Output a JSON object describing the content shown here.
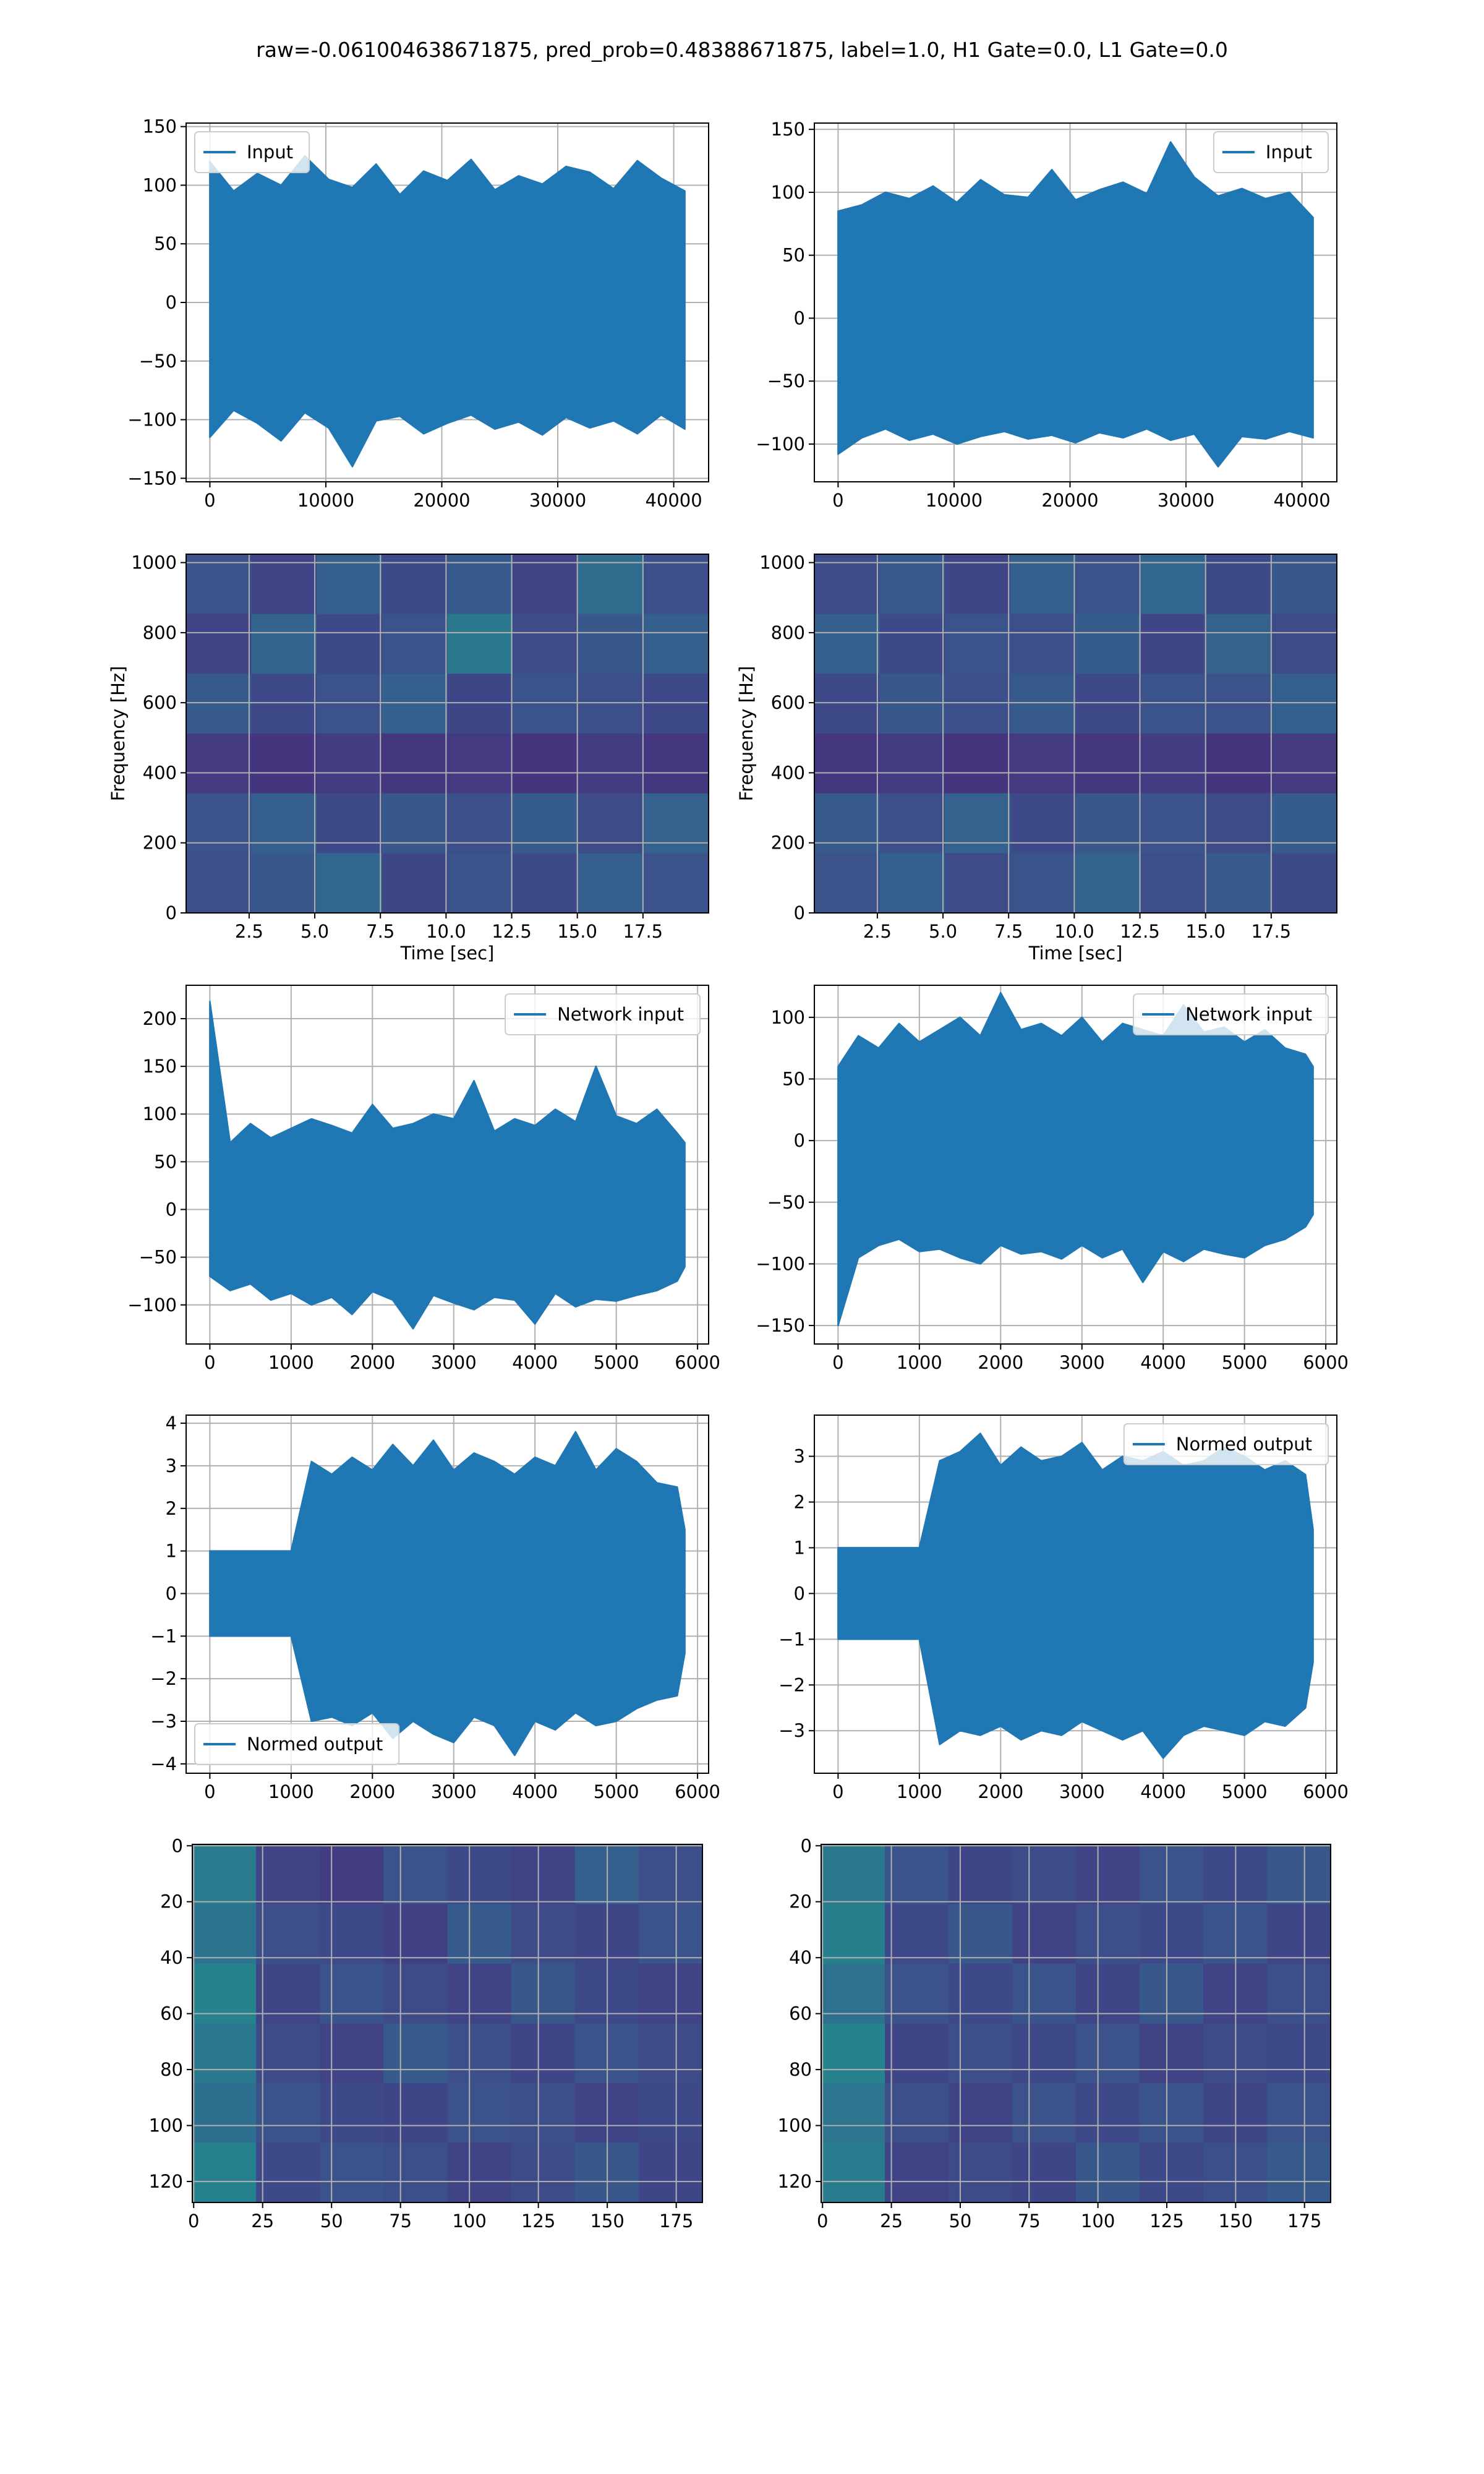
{
  "title": "raw=-0.061004638671875, pred_prob=0.48388671875, label=1.0, H1 Gate=0.0, L1 Gate=0.0",
  "chart_data": [
    {
      "type": "line",
      "x": [
        0,
        2048,
        4096,
        6144,
        8192,
        10240,
        12288,
        14336,
        16384,
        18432,
        20480,
        22528,
        24576,
        26624,
        28672,
        30720,
        32768,
        34816,
        36864,
        38912,
        40960
      ],
      "series": [
        {
          "name": "Input",
          "color": "#1f77b4",
          "max": [
            120,
            95,
            110,
            100,
            125,
            105,
            98,
            118,
            92,
            112,
            104,
            122,
            96,
            108,
            101,
            116,
            111,
            97,
            121,
            106,
            95
          ],
          "min": [
            -115,
            -92,
            -103,
            -118,
            -94,
            -107,
            -140,
            -101,
            -97,
            -112,
            -103,
            -96,
            -108,
            -102,
            -113,
            -98,
            -107,
            -101,
            -112,
            -96,
            -108
          ]
        }
      ],
      "xlim": [
        -2048,
        43008
      ],
      "ylim": [
        -153,
        153
      ],
      "xticks": [
        0,
        10000,
        20000,
        30000,
        40000
      ],
      "yticks": [
        {
          "value": -150,
          "label": "−150"
        },
        {
          "value": -100,
          "label": "−100"
        },
        {
          "value": -50,
          "label": "−50"
        },
        0,
        50,
        100,
        150
      ],
      "grid": true,
      "legend": "upper left"
    },
    {
      "type": "line",
      "x": [
        0,
        2048,
        4096,
        6144,
        8192,
        10240,
        12288,
        14336,
        16384,
        18432,
        20480,
        22528,
        24576,
        26624,
        28672,
        30720,
        32768,
        34816,
        36864,
        38912,
        40960
      ],
      "series": [
        {
          "name": "Input",
          "color": "#1f77b4",
          "max": [
            85,
            90,
            100,
            95,
            105,
            92,
            110,
            98,
            96,
            118,
            94,
            102,
            108,
            99,
            140,
            112,
            97,
            103,
            95,
            100,
            80
          ],
          "min": [
            -108,
            -95,
            -88,
            -97,
            -92,
            -100,
            -94,
            -90,
            -96,
            -93,
            -99,
            -91,
            -95,
            -88,
            -97,
            -92,
            -118,
            -94,
            -96,
            -90,
            -95
          ]
        }
      ],
      "xlim": [
        -2048,
        43008
      ],
      "ylim": [
        -130,
        155
      ],
      "xticks": [
        0,
        10000,
        20000,
        30000,
        40000
      ],
      "yticks": [
        {
          "value": -100,
          "label": "−100"
        },
        {
          "value": -50,
          "label": "−50"
        },
        0,
        50,
        100,
        150
      ],
      "grid": true,
      "legend": "upper right"
    },
    {
      "type": "heatmap",
      "colormap": "viridis",
      "xlabel": "Time [sec]",
      "ylabel": "Frequency [Hz]",
      "z": [
        [
          0.25,
          0.2,
          0.3,
          0.22,
          0.28,
          0.2,
          0.35,
          0.24
        ],
        [
          0.2,
          0.32,
          0.22,
          0.26,
          0.4,
          0.23,
          0.27,
          0.3
        ],
        [
          0.28,
          0.22,
          0.25,
          0.3,
          0.21,
          0.26,
          0.24,
          0.22
        ],
        [
          0.17,
          0.15,
          0.18,
          0.16,
          0.17,
          0.15,
          0.18,
          0.16
        ],
        [
          0.26,
          0.3,
          0.22,
          0.27,
          0.24,
          0.29,
          0.23,
          0.31
        ],
        [
          0.24,
          0.27,
          0.33,
          0.21,
          0.26,
          0.22,
          0.3,
          0.25
        ]
      ],
      "xlim": [
        0.1,
        20
      ],
      "ylim": [
        0,
        1024
      ],
      "xticks": [
        2.5,
        {
          "value": 5,
          "label": "5.0"
        },
        7.5,
        {
          "value": 10,
          "label": "10.0"
        },
        12.5,
        {
          "value": 15,
          "label": "15.0"
        },
        17.5
      ],
      "yticks": [
        0,
        200,
        400,
        600,
        800,
        1000
      ],
      "grid": true
    },
    {
      "type": "heatmap",
      "colormap": "viridis",
      "xlabel": "Time [sec]",
      "ylabel": "Frequency [Hz]",
      "z": [
        [
          0.23,
          0.28,
          0.21,
          0.3,
          0.25,
          0.33,
          0.22,
          0.27
        ],
        [
          0.3,
          0.22,
          0.26,
          0.24,
          0.29,
          0.21,
          0.31,
          0.23
        ],
        [
          0.22,
          0.27,
          0.24,
          0.28,
          0.22,
          0.26,
          0.25,
          0.3
        ],
        [
          0.16,
          0.18,
          0.15,
          0.17,
          0.16,
          0.18,
          0.15,
          0.17
        ],
        [
          0.28,
          0.24,
          0.31,
          0.22,
          0.27,
          0.25,
          0.23,
          0.29
        ],
        [
          0.25,
          0.3,
          0.23,
          0.26,
          0.32,
          0.24,
          0.28,
          0.22
        ]
      ],
      "xlim": [
        0.1,
        20
      ],
      "ylim": [
        0,
        1024
      ],
      "xticks": [
        2.5,
        {
          "value": 5,
          "label": "5.0"
        },
        7.5,
        {
          "value": 10,
          "label": "10.0"
        },
        12.5,
        {
          "value": 15,
          "label": "15.0"
        },
        17.5
      ],
      "yticks": [
        0,
        200,
        400,
        600,
        800,
        1000
      ],
      "grid": true
    },
    {
      "type": "line",
      "x": [
        0,
        250,
        500,
        750,
        1000,
        1250,
        1500,
        1750,
        2000,
        2250,
        2500,
        2750,
        3000,
        3250,
        3500,
        3750,
        4000,
        4250,
        4500,
        4750,
        5000,
        5250,
        5500,
        5750,
        5844
      ],
      "series": [
        {
          "name": "Network input",
          "color": "#1f77b4",
          "max": [
            218,
            70,
            90,
            75,
            85,
            95,
            88,
            80,
            110,
            85,
            90,
            100,
            95,
            135,
            82,
            95,
            88,
            105,
            92,
            150,
            98,
            90,
            105,
            80,
            70
          ],
          "min": [
            -70,
            -85,
            -78,
            -95,
            -88,
            -100,
            -92,
            -110,
            -86,
            -95,
            -125,
            -90,
            -98,
            -105,
            -92,
            -95,
            -120,
            -88,
            -102,
            -94,
            -96,
            -90,
            -85,
            -75,
            -60
          ]
        }
      ],
      "xlim": [
        -292,
        6136
      ],
      "ylim": [
        -141,
        235
      ],
      "xticks": [
        0,
        1000,
        2000,
        3000,
        4000,
        5000,
        6000
      ],
      "yticks": [
        {
          "value": -100,
          "label": "−100"
        },
        {
          "value": -50,
          "label": "−50"
        },
        0,
        50,
        100,
        150,
        200
      ],
      "grid": true,
      "legend": "upper right"
    },
    {
      "type": "line",
      "x": [
        0,
        250,
        500,
        750,
        1000,
        1250,
        1500,
        1750,
        2000,
        2250,
        2500,
        2750,
        3000,
        3250,
        3500,
        3750,
        4000,
        4250,
        4500,
        4750,
        5000,
        5250,
        5500,
        5750,
        5844
      ],
      "series": [
        {
          "name": "Network input",
          "color": "#1f77b4",
          "max": [
            60,
            85,
            75,
            95,
            80,
            90,
            100,
            85,
            120,
            90,
            95,
            85,
            100,
            80,
            95,
            90,
            85,
            110,
            88,
            92,
            80,
            90,
            75,
            70,
            60
          ],
          "min": [
            -150,
            -95,
            -85,
            -80,
            -90,
            -88,
            -95,
            -100,
            -85,
            -92,
            -90,
            -96,
            -85,
            -95,
            -88,
            -115,
            -90,
            -98,
            -88,
            -92,
            -95,
            -85,
            -80,
            -70,
            -60
          ]
        }
      ],
      "xlim": [
        -292,
        6136
      ],
      "ylim": [
        -165,
        126
      ],
      "xticks": [
        0,
        1000,
        2000,
        3000,
        4000,
        5000,
        6000
      ],
      "yticks": [
        {
          "value": -150,
          "label": "−150"
        },
        {
          "value": -100,
          "label": "−100"
        },
        {
          "value": -50,
          "label": "−50"
        },
        0,
        50,
        100
      ],
      "grid": true,
      "legend": "upper right"
    },
    {
      "type": "line",
      "x": [
        0,
        250,
        500,
        750,
        1000,
        1250,
        1500,
        1750,
        2000,
        2250,
        2500,
        2750,
        3000,
        3250,
        3500,
        3750,
        4000,
        4250,
        4500,
        4750,
        5000,
        5250,
        5500,
        5750,
        5844
      ],
      "series": [
        {
          "name": "Normed output",
          "color": "#1f77b4",
          "max": [
            1,
            1,
            1,
            1,
            1,
            3.1,
            2.8,
            3.2,
            2.9,
            3.5,
            3,
            3.6,
            2.9,
            3.3,
            3.1,
            2.8,
            3.2,
            3,
            3.8,
            2.9,
            3.4,
            3.1,
            2.6,
            2.5,
            1.5
          ],
          "min": [
            -1,
            -1,
            -1,
            -1,
            -1,
            -3,
            -2.9,
            -3.1,
            -2.8,
            -3.4,
            -3,
            -3.3,
            -3.5,
            -2.9,
            -3.1,
            -3.8,
            -3,
            -3.2,
            -2.8,
            -3.1,
            -3,
            -2.7,
            -2.5,
            -2.4,
            -1.4
          ]
        }
      ],
      "xlim": [
        -292,
        6136
      ],
      "ylim": [
        -4.22,
        4.19
      ],
      "xticks": [
        0,
        1000,
        2000,
        3000,
        4000,
        5000,
        6000
      ],
      "yticks": [
        {
          "value": -4,
          "label": "−4"
        },
        {
          "value": -3,
          "label": "−3"
        },
        {
          "value": -2,
          "label": "−2"
        },
        {
          "value": -1,
          "label": "−1"
        },
        0,
        1,
        2,
        3,
        4
      ],
      "grid": true,
      "legend": "lower left"
    },
    {
      "type": "line",
      "x": [
        0,
        250,
        500,
        750,
        1000,
        1250,
        1500,
        1750,
        2000,
        2250,
        2500,
        2750,
        3000,
        3250,
        3500,
        3750,
        4000,
        4250,
        4500,
        4750,
        5000,
        5250,
        5500,
        5750,
        5844
      ],
      "series": [
        {
          "name": "Normed output",
          "color": "#1f77b4",
          "max": [
            1,
            1,
            1,
            1,
            1,
            2.9,
            3.1,
            3.5,
            2.8,
            3.2,
            2.9,
            3,
            3.3,
            2.7,
            3,
            2.9,
            3.1,
            2.8,
            2.9,
            3.2,
            3,
            2.7,
            2.9,
            2.6,
            1.4
          ],
          "min": [
            -1,
            -1,
            -1,
            -1,
            -1,
            -3.3,
            -3,
            -3.1,
            -2.9,
            -3.2,
            -3,
            -3.1,
            -2.8,
            -3,
            -3.2,
            -3,
            -3.6,
            -3.1,
            -2.9,
            -3,
            -3.1,
            -2.8,
            -2.9,
            -2.5,
            -1.5
          ]
        }
      ],
      "xlim": [
        -292,
        6136
      ],
      "ylim": [
        -3.93,
        3.9
      ],
      "xticks": [
        0,
        1000,
        2000,
        3000,
        4000,
        5000,
        6000
      ],
      "yticks": [
        {
          "value": -3,
          "label": "−3"
        },
        {
          "value": -2,
          "label": "−2"
        },
        {
          "value": -1,
          "label": "−1"
        },
        0,
        1,
        2,
        3
      ],
      "grid": true,
      "legend": "upper right"
    },
    {
      "type": "heatmap",
      "colormap": "viridis",
      "z": [
        [
          0.42,
          0.2,
          0.18,
          0.25,
          0.22,
          0.2,
          0.3,
          0.24
        ],
        [
          0.38,
          0.24,
          0.22,
          0.19,
          0.28,
          0.23,
          0.21,
          0.26
        ],
        [
          0.45,
          0.21,
          0.26,
          0.23,
          0.2,
          0.27,
          0.22,
          0.2
        ],
        [
          0.4,
          0.23,
          0.2,
          0.28,
          0.24,
          0.21,
          0.26,
          0.23
        ],
        [
          0.36,
          0.26,
          0.22,
          0.21,
          0.25,
          0.24,
          0.2,
          0.22
        ],
        [
          0.44,
          0.22,
          0.25,
          0.24,
          0.2,
          0.23,
          0.27,
          0.21
        ]
      ],
      "xlim": [
        -0.5,
        184.5
      ],
      "ylim": [
        127.5,
        -0.5
      ],
      "xticks": [
        0,
        25,
        50,
        75,
        100,
        125,
        150,
        175
      ],
      "yticks": [
        0,
        20,
        40,
        60,
        80,
        100,
        120
      ],
      "grid": true
    },
    {
      "type": "heatmap",
      "colormap": "viridis",
      "z": [
        [
          0.4,
          0.26,
          0.21,
          0.23,
          0.2,
          0.25,
          0.22,
          0.27
        ],
        [
          0.43,
          0.22,
          0.27,
          0.2,
          0.24,
          0.22,
          0.26,
          0.21
        ],
        [
          0.37,
          0.25,
          0.22,
          0.26,
          0.21,
          0.27,
          0.2,
          0.24
        ],
        [
          0.45,
          0.21,
          0.24,
          0.22,
          0.25,
          0.2,
          0.23,
          0.22
        ],
        [
          0.39,
          0.24,
          0.2,
          0.25,
          0.22,
          0.26,
          0.21,
          0.25
        ],
        [
          0.42,
          0.2,
          0.23,
          0.21,
          0.27,
          0.22,
          0.24,
          0.28
        ]
      ],
      "xlim": [
        -0.5,
        184.5
      ],
      "ylim": [
        127.5,
        -0.5
      ],
      "xticks": [
        0,
        25,
        50,
        75,
        100,
        125,
        150,
        175
      ],
      "yticks": [
        0,
        20,
        40,
        60,
        80,
        100,
        120
      ],
      "grid": true
    }
  ]
}
